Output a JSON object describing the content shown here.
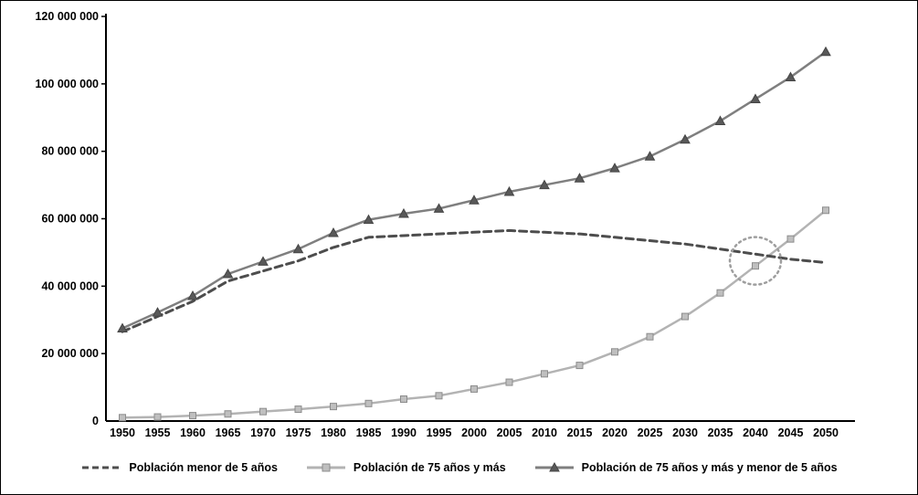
{
  "chart_data": {
    "type": "line",
    "title": "",
    "xlabel": "",
    "ylabel": "",
    "x": [
      1950,
      1955,
      1960,
      1965,
      1970,
      1975,
      1980,
      1985,
      1990,
      1995,
      2000,
      2005,
      2010,
      2015,
      2020,
      2025,
      2030,
      2035,
      2040,
      2045,
      2050
    ],
    "series": [
      {
        "name": "Población menor de 5 años",
        "style": "dashed",
        "dash": "8 5",
        "color": "#4d4d4d",
        "width": 3,
        "marker": "none",
        "values": [
          26500000,
          31000000,
          35500000,
          41500000,
          44500000,
          47500000,
          51500000,
          54500000,
          55000000,
          55500000,
          56000000,
          56500000,
          56000000,
          55500000,
          54500000,
          53500000,
          52500000,
          51000000,
          49500000,
          48000000,
          47000000
        ]
      },
      {
        "name": "Población de 75 años y más",
        "style": "solid",
        "dash": "",
        "color": "#b3b3b3",
        "width": 2.5,
        "marker": "square",
        "marker_fill": "#bfbfbf",
        "marker_stroke": "#8c8c8c",
        "values": [
          1000000,
          1200000,
          1600000,
          2100000,
          2800000,
          3500000,
          4300000,
          5200000,
          6500000,
          7500000,
          9500000,
          11500000,
          14000000,
          16500000,
          20500000,
          25000000,
          31000000,
          38000000,
          46000000,
          54000000,
          62500000
        ]
      },
      {
        "name": "Población de 75 años y más y menor de 5 años",
        "style": "solid",
        "dash": "",
        "color": "#7f7f7f",
        "width": 2.5,
        "marker": "triangle",
        "marker_fill": "#595959",
        "marker_stroke": "#454545",
        "values": [
          27500000,
          32200000,
          37100000,
          43600000,
          47300000,
          51000000,
          55800000,
          59700000,
          61500000,
          63000000,
          65500000,
          68000000,
          70000000,
          72000000,
          75000000,
          78500000,
          83500000,
          89000000,
          95500000,
          102000000,
          109500000
        ]
      }
    ],
    "ylim": [
      0,
      120000000
    ],
    "y_axis": {
      "tick_values": [
        0,
        20000000,
        40000000,
        60000000,
        80000000,
        100000000,
        120000000
      ],
      "tick_labels": [
        "0",
        "20 000 000",
        "40 000 000",
        "60 000 000",
        "80 000 000",
        "100 000 000",
        "120 000 000"
      ]
    },
    "x_axis": {
      "tick_labels": [
        "1950",
        "1955",
        "1960",
        "1965",
        "1970",
        "1975",
        "1980",
        "1985",
        "1990",
        "1995",
        "2000",
        "2005",
        "2010",
        "2015",
        "2020",
        "2025",
        "2030",
        "2035",
        "2040",
        "2045",
        "2050"
      ]
    },
    "grid": false,
    "legend_position": "bottom",
    "annotation": {
      "shape": "dotted-circle",
      "x_year": 2040,
      "y_value": 47500000,
      "color": "#9e9e9e"
    },
    "colors": {
      "axis": "#000000",
      "text": "#000000",
      "background": "#ffffff",
      "border": "#000000"
    }
  }
}
